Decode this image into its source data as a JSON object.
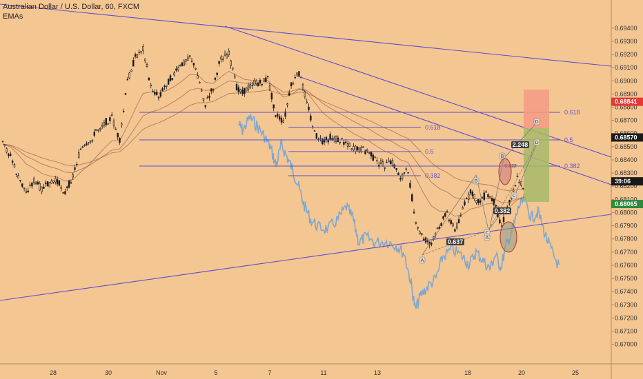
{
  "header": {
    "title": "Australian Dollar / U.S. Dollar, 60, FXCM",
    "indicator": "EMAs"
  },
  "colors": {
    "background": "#f4c692",
    "trendline": "#5a4fcf",
    "ghost": "#6fa3d8",
    "candle": "#1a1a1a",
    "ema": "#8a4a3a",
    "red_tag": "#e53935",
    "green_tag": "#2e8b3e",
    "dark_tag": "#1a1a1a",
    "target_box": "#f59a82",
    "stop_box": "#a6b968"
  },
  "chart_data": {
    "type": "candlestick",
    "symbol": "AUDUSD",
    "interval": "60",
    "source": "FXCM",
    "ylim": [
      0.6692,
      0.6954
    ],
    "y_ticks": [
      "0.69400",
      "0.69300",
      "0.69200",
      "0.69100",
      "0.69000",
      "0.68900",
      "0.68800",
      "0.68700",
      "0.68600",
      "0.68500",
      "0.68400",
      "0.68300",
      "0.68200",
      "0.68100",
      "0.68000",
      "0.67900",
      "0.67800",
      "0.67700",
      "0.67600",
      "0.67500",
      "0.67400",
      "0.67300",
      "0.67200",
      "0.67100",
      "0.67000"
    ],
    "x_ticks": [
      "28",
      "30",
      "Nov",
      "5",
      "7",
      "11",
      "13",
      "18",
      "20",
      "25"
    ],
    "price_tags": [
      {
        "label": "0.68841",
        "value": 0.68841,
        "kind": "red"
      },
      {
        "label": "0.68570",
        "value": 0.6857,
        "kind": "dark"
      },
      {
        "label": "39:06",
        "value": 0.68237,
        "kind": "dark"
      },
      {
        "label": "0.68065",
        "value": 0.68065,
        "kind": "green"
      }
    ],
    "candles": [
      {
        "x": 0,
        "p": 0.6852
      },
      {
        "x": 1,
        "p": 0.6843
      },
      {
        "x": 2,
        "p": 0.6826
      },
      {
        "x": 3,
        "p": 0.6816
      },
      {
        "x": 4,
        "p": 0.6824
      },
      {
        "x": 5,
        "p": 0.6818
      },
      {
        "x": 6,
        "p": 0.6822
      },
      {
        "x": 7,
        "p": 0.6824
      },
      {
        "x": 8,
        "p": 0.6815
      },
      {
        "x": 9,
        "p": 0.6828
      },
      {
        "x": 10,
        "p": 0.6848
      },
      {
        "x": 11,
        "p": 0.6851
      },
      {
        "x": 12,
        "p": 0.6862
      },
      {
        "x": 13,
        "p": 0.6868
      },
      {
        "x": 14,
        "p": 0.6872
      },
      {
        "x": 15,
        "p": 0.6854
      },
      {
        "x": 16,
        "p": 0.69
      },
      {
        "x": 17,
        "p": 0.6918
      },
      {
        "x": 18,
        "p": 0.6925
      },
      {
        "x": 19,
        "p": 0.6895
      },
      {
        "x": 20,
        "p": 0.6888
      },
      {
        "x": 21,
        "p": 0.6898
      },
      {
        "x": 22,
        "p": 0.6905
      },
      {
        "x": 23,
        "p": 0.6912
      },
      {
        "x": 24,
        "p": 0.692
      },
      {
        "x": 25,
        "p": 0.6904
      },
      {
        "x": 26,
        "p": 0.6882
      },
      {
        "x": 27,
        "p": 0.6895
      },
      {
        "x": 28,
        "p": 0.6918
      },
      {
        "x": 29,
        "p": 0.692
      },
      {
        "x": 30,
        "p": 0.6895
      },
      {
        "x": 31,
        "p": 0.6892
      },
      {
        "x": 32,
        "p": 0.6898
      },
      {
        "x": 33,
        "p": 0.6898
      },
      {
        "x": 34,
        "p": 0.6902
      },
      {
        "x": 35,
        "p": 0.6875
      },
      {
        "x": 36,
        "p": 0.6868
      },
      {
        "x": 37,
        "p": 0.6896
      },
      {
        "x": 38,
        "p": 0.6906
      },
      {
        "x": 39,
        "p": 0.6885
      },
      {
        "x": 40,
        "p": 0.686
      },
      {
        "x": 41,
        "p": 0.6853
      },
      {
        "x": 42,
        "p": 0.6857
      },
      {
        "x": 43,
        "p": 0.6855
      },
      {
        "x": 44,
        "p": 0.6854
      },
      {
        "x": 45,
        "p": 0.6848
      },
      {
        "x": 46,
        "p": 0.6848
      },
      {
        "x": 47,
        "p": 0.6846
      },
      {
        "x": 48,
        "p": 0.6838
      },
      {
        "x": 49,
        "p": 0.6836
      },
      {
        "x": 50,
        "p": 0.6838
      },
      {
        "x": 51,
        "p": 0.6827
      },
      {
        "x": 52,
        "p": 0.6832
      },
      {
        "x": 53,
        "p": 0.679
      },
      {
        "x": 54,
        "p": 0.678
      },
      {
        "x": 55,
        "p": 0.6776
      },
      {
        "x": 56,
        "p": 0.679
      },
      {
        "x": 57,
        "p": 0.68
      },
      {
        "x": 58,
        "p": 0.6786
      },
      {
        "x": 59,
        "p": 0.6803
      },
      {
        "x": 60,
        "p": 0.6815
      },
      {
        "x": 61,
        "p": 0.6808
      },
      {
        "x": 62,
        "p": 0.6814
      },
      {
        "x": 63,
        "p": 0.6808
      },
      {
        "x": 64,
        "p": 0.679
      },
      {
        "x": 65,
        "p": 0.6809
      },
      {
        "x": 66,
        "p": 0.6826
      },
      {
        "x": 67,
        "p": 0.6818
      }
    ],
    "fib_levels": [
      "0.618",
      "0.5",
      "0.382",
      "0.618",
      "0.5",
      "0.382"
    ],
    "pattern_labels": [
      "A",
      "B",
      "C",
      "D",
      "A",
      "B",
      "C",
      "D"
    ],
    "ratio_labels": [
      "0.637",
      "0.382",
      "2.248"
    ],
    "b_ratio": "0.822"
  }
}
